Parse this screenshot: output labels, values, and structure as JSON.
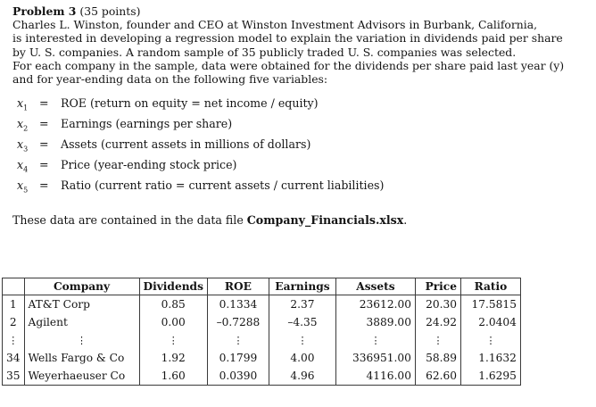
{
  "problem": {
    "title": "Problem 3",
    "points": "(35 points)",
    "lines": [
      "Charles L. Winston, founder and CEO at Winston Investment Advisors in Burbank, California,",
      "is interested in developing a regression model to explain the variation in dividends paid per share",
      "by U. S. companies. A random sample of 35 publicly traded U. S. companies was selected.",
      "For each company in the sample, data were obtained for the dividends per share paid last year (y)",
      "and for year-ending data on the following five variables:"
    ]
  },
  "variables": [
    {
      "symbol": "x",
      "sub": "1",
      "eq": "=",
      "desc": "ROE (return on equity = net income / equity)"
    },
    {
      "symbol": "x",
      "sub": "2",
      "eq": "=",
      "desc": "Earnings (earnings per share)"
    },
    {
      "symbol": "x",
      "sub": "3",
      "eq": "=",
      "desc": "Assets (current assets in millions of dollars)"
    },
    {
      "symbol": "x",
      "sub": "4",
      "eq": "=",
      "desc": "Price (year-ending stock price)"
    },
    {
      "symbol": "x",
      "sub": "5",
      "eq": "=",
      "desc": "Ratio (current ratio = current assets / current liabilities)"
    }
  ],
  "data_note": {
    "prefix": "These data are contained in the data file ",
    "filename": "Company_Financials.xlsx",
    "suffix": "."
  },
  "table": {
    "headers": [
      "",
      "Company",
      "Dividends",
      "ROE",
      "Earnings",
      "Assets",
      "Price",
      "Ratio"
    ],
    "rows": [
      [
        "1",
        "AT&T Corp",
        "0.85",
        "0.1334",
        "2.37",
        "23612.00",
        "20.30",
        "17.5815"
      ],
      [
        "2",
        "Agilent",
        "0.00",
        "–0.7288",
        "–4.35",
        "3889.00",
        "24.92",
        "2.0404"
      ],
      [
        "34",
        "Wells Fargo & Co",
        "1.92",
        "0.1799",
        "4.00",
        "336951.00",
        "58.89",
        "1.1632"
      ],
      [
        "35",
        "Weyerhaeuser Co",
        "1.60",
        "0.0390",
        "4.96",
        "4116.00",
        "62.60",
        "1.6295"
      ]
    ],
    "ellipsis": "⋮"
  }
}
